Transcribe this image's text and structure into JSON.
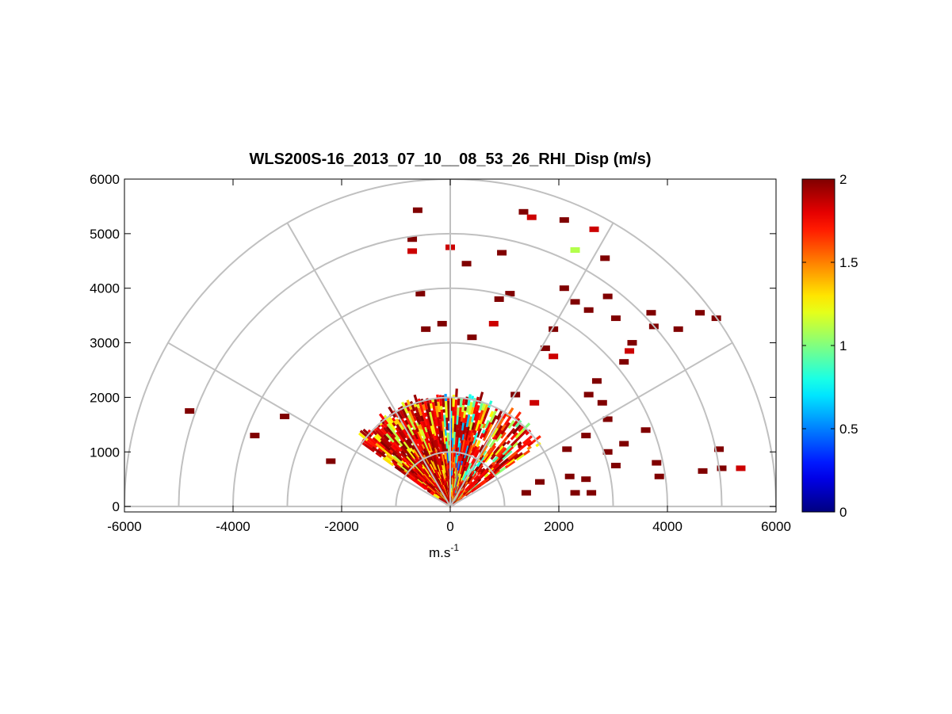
{
  "chart_data": {
    "type": "heatmap",
    "subtype": "polar-rhi-sector",
    "title": "WLS200S-16_2013_07_10__08_53_26_RHI_Disp (m/s)",
    "xlabel": "m.s",
    "xlabel_superscript": "-1",
    "ylabel": "",
    "xlim": [
      -6000,
      6000
    ],
    "ylim": [
      -100,
      6000
    ],
    "x_ticks": [
      "-6000",
      "-4000",
      "-2000",
      "0",
      "2000",
      "4000",
      "6000"
    ],
    "y_ticks": [
      "0",
      "1000",
      "2000",
      "3000",
      "4000",
      "5000",
      "6000"
    ],
    "polar_grid": {
      "ring_ranges": [
        1000,
        2000,
        3000,
        4000,
        5000,
        6000
      ],
      "spoke_angles_deg": [
        0,
        30,
        60,
        90,
        120,
        150,
        180
      ],
      "grid_color": "#c0c0c0"
    },
    "colorbar": {
      "colormap": "jet",
      "clim": [
        0,
        2
      ],
      "ticks": [
        "0",
        "0.5",
        "1",
        "1.5",
        "2"
      ]
    },
    "dense_sector": {
      "azimuth_deg": [
        35,
        145
      ],
      "max_range_m": 2200,
      "description_values": "values mostly 1.5-2 near center-left, mixed 0.3-2 near center"
    },
    "scatter_cells": [
      {
        "x": -4800,
        "y": 1750,
        "v": 2
      },
      {
        "x": -3600,
        "y": 1300,
        "v": 2
      },
      {
        "x": -3050,
        "y": 1650,
        "v": 2
      },
      {
        "x": -2200,
        "y": 830,
        "v": 2
      },
      {
        "x": -600,
        "y": 5430,
        "v": 2
      },
      {
        "x": -700,
        "y": 4900,
        "v": 2
      },
      {
        "x": -700,
        "y": 4680,
        "v": 1.85
      },
      {
        "x": 0,
        "y": 4750,
        "v": 1.85
      },
      {
        "x": 300,
        "y": 4450,
        "v": 2
      },
      {
        "x": -550,
        "y": 3900,
        "v": 2
      },
      {
        "x": -450,
        "y": 3250,
        "v": 2
      },
      {
        "x": -150,
        "y": 3350,
        "v": 2
      },
      {
        "x": 1350,
        "y": 5400,
        "v": 2
      },
      {
        "x": 1500,
        "y": 5300,
        "v": 1.85
      },
      {
        "x": 2100,
        "y": 5250,
        "v": 2
      },
      {
        "x": 2650,
        "y": 5080,
        "v": 1.85
      },
      {
        "x": 2300,
        "y": 4700,
        "v": 1.1
      },
      {
        "x": 2850,
        "y": 4550,
        "v": 2
      },
      {
        "x": 950,
        "y": 4650,
        "v": 2
      },
      {
        "x": 1100,
        "y": 3900,
        "v": 2
      },
      {
        "x": 900,
        "y": 3800,
        "v": 2
      },
      {
        "x": 2100,
        "y": 4000,
        "v": 2
      },
      {
        "x": 2300,
        "y": 3750,
        "v": 2
      },
      {
        "x": 2550,
        "y": 3600,
        "v": 2
      },
      {
        "x": 2900,
        "y": 3850,
        "v": 2
      },
      {
        "x": 3050,
        "y": 3450,
        "v": 2
      },
      {
        "x": 3700,
        "y": 3550,
        "v": 2
      },
      {
        "x": 3750,
        "y": 3300,
        "v": 2
      },
      {
        "x": 4200,
        "y": 3250,
        "v": 2
      },
      {
        "x": 4600,
        "y": 3550,
        "v": 2
      },
      {
        "x": 4900,
        "y": 3450,
        "v": 2
      },
      {
        "x": 800,
        "y": 3350,
        "v": 1.85
      },
      {
        "x": 400,
        "y": 3100,
        "v": 2
      },
      {
        "x": 1900,
        "y": 3250,
        "v": 2
      },
      {
        "x": 1900,
        "y": 2750,
        "v": 1.85
      },
      {
        "x": 3300,
        "y": 2850,
        "v": 1.85
      },
      {
        "x": 3350,
        "y": 3000,
        "v": 2
      },
      {
        "x": 3200,
        "y": 2650,
        "v": 2
      },
      {
        "x": 1750,
        "y": 2900,
        "v": 2
      },
      {
        "x": 2700,
        "y": 2300,
        "v": 2
      },
      {
        "x": 2550,
        "y": 2050,
        "v": 2
      },
      {
        "x": 2800,
        "y": 1900,
        "v": 2
      },
      {
        "x": 3200,
        "y": 1150,
        "v": 2
      },
      {
        "x": 2900,
        "y": 1000,
        "v": 2
      },
      {
        "x": 3600,
        "y": 1400,
        "v": 2
      },
      {
        "x": 3800,
        "y": 800,
        "v": 2
      },
      {
        "x": 3850,
        "y": 550,
        "v": 2
      },
      {
        "x": 4650,
        "y": 650,
        "v": 2
      },
      {
        "x": 5000,
        "y": 700,
        "v": 2
      },
      {
        "x": 4950,
        "y": 1050,
        "v": 2
      },
      {
        "x": 3050,
        "y": 750,
        "v": 2
      },
      {
        "x": 2200,
        "y": 550,
        "v": 2
      },
      {
        "x": 2500,
        "y": 500,
        "v": 2
      },
      {
        "x": 2300,
        "y": 250,
        "v": 2
      },
      {
        "x": 2600,
        "y": 250,
        "v": 2
      },
      {
        "x": 1400,
        "y": 250,
        "v": 2
      },
      {
        "x": 1650,
        "y": 450,
        "v": 2
      },
      {
        "x": 5350,
        "y": 700,
        "v": 1.85
      },
      {
        "x": 2150,
        "y": 1050,
        "v": 2
      },
      {
        "x": 2500,
        "y": 1300,
        "v": 2
      },
      {
        "x": 2900,
        "y": 1600,
        "v": 2
      },
      {
        "x": 1200,
        "y": 2050,
        "v": 2
      },
      {
        "x": 1550,
        "y": 1900,
        "v": 1.85
      }
    ]
  }
}
